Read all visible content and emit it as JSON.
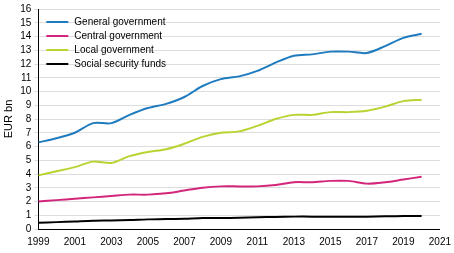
{
  "chart_data": {
    "type": "line",
    "y_label": "EUR bn",
    "x": [
      1999,
      2000,
      2001,
      2002,
      2003,
      2004,
      2005,
      2006,
      2007,
      2008,
      2009,
      2010,
      2011,
      2012,
      2013,
      2014,
      2015,
      2016,
      2017,
      2018,
      2019,
      2020
    ],
    "series": [
      {
        "name": "General government",
        "color": "#1f7bbf",
        "values": [
          6.3,
          6.6,
          7.0,
          7.7,
          7.7,
          8.3,
          8.8,
          9.1,
          9.6,
          10.4,
          10.9,
          11.1,
          11.5,
          12.1,
          12.6,
          12.7,
          12.9,
          12.9,
          12.8,
          13.3,
          13.9,
          14.2
        ]
      },
      {
        "name": "Central government",
        "color": "#d3267b",
        "values": [
          2.0,
          2.1,
          2.2,
          2.3,
          2.4,
          2.5,
          2.5,
          2.6,
          2.8,
          3.0,
          3.1,
          3.1,
          3.1,
          3.2,
          3.4,
          3.4,
          3.5,
          3.5,
          3.3,
          3.4,
          3.6,
          3.8
        ]
      },
      {
        "name": "Local government",
        "color": "#b8d432",
        "values": [
          3.9,
          4.2,
          4.5,
          4.9,
          4.8,
          5.3,
          5.6,
          5.8,
          6.2,
          6.7,
          7.0,
          7.1,
          7.5,
          8.0,
          8.3,
          8.3,
          8.5,
          8.5,
          8.6,
          8.9,
          9.3,
          9.4
        ]
      },
      {
        "name": "Social security funds",
        "color": "#000000",
        "values": [
          0.45,
          0.5,
          0.55,
          0.6,
          0.62,
          0.65,
          0.7,
          0.72,
          0.75,
          0.8,
          0.8,
          0.82,
          0.85,
          0.88,
          0.9,
          0.9,
          0.9,
          0.9,
          0.9,
          0.92,
          0.95,
          0.95
        ]
      }
    ],
    "xlim": [
      1999,
      2021
    ],
    "xticks": [
      1999,
      2001,
      2003,
      2005,
      2007,
      2009,
      2011,
      2013,
      2015,
      2017,
      2019,
      2021
    ],
    "ylim": [
      0,
      16
    ],
    "yticks": [
      0,
      1,
      2,
      3,
      4,
      5,
      6,
      7,
      8,
      9,
      10,
      11,
      12,
      13,
      14,
      15,
      16
    ],
    "grid": true,
    "legend": "upper left"
  }
}
